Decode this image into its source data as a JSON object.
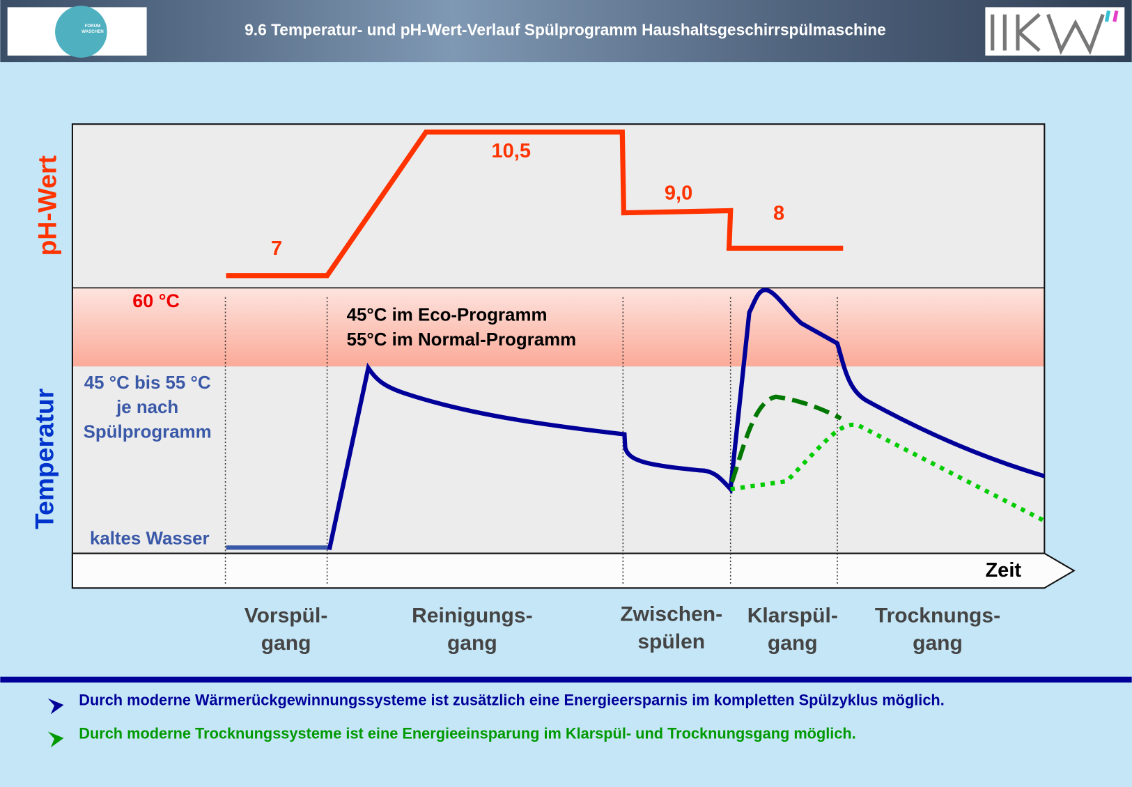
{
  "header": {
    "title": "9.6 Temperatur- und pH-Wert-Verlauf Spülprogramm Haushaltsgeschirrspülmaschine",
    "logo_left": [
      "FORUM",
      "WASCHEN"
    ]
  },
  "diagram": {
    "axis_labels": {
      "ph": "pH-Wert",
      "temperature": "Temperatur",
      "time": "Zeit"
    },
    "ph_labels": [
      "7",
      "10,5",
      "9,0",
      "8"
    ],
    "temperature_labels": {
      "max": "60 °C",
      "range": [
        "45 °C bis 55 °C",
        "je nach",
        "Spülprogramm"
      ],
      "cold": "kaltes Wasser"
    },
    "note": [
      "45°C im Eco-Programm",
      "55°C im Normal-Programm"
    ],
    "phases": [
      [
        "Vorspül-",
        "gang"
      ],
      [
        "Reinigungs-",
        "gang"
      ],
      [
        "Zwischen-",
        "spülen"
      ],
      [
        "Klarspül-",
        "gang"
      ],
      [
        "Trocknungs-",
        "gang"
      ]
    ]
  },
  "bullets": [
    "Durch moderne Wärmerückgewinnungssysteme ist zusätzlich eine Energieersparnis im kompletten Spülzyklus möglich.",
    "Durch moderne Trocknungssysteme ist eine Energieeinsparung im Klarspül- und Trocknungsgang möglich."
  ]
}
